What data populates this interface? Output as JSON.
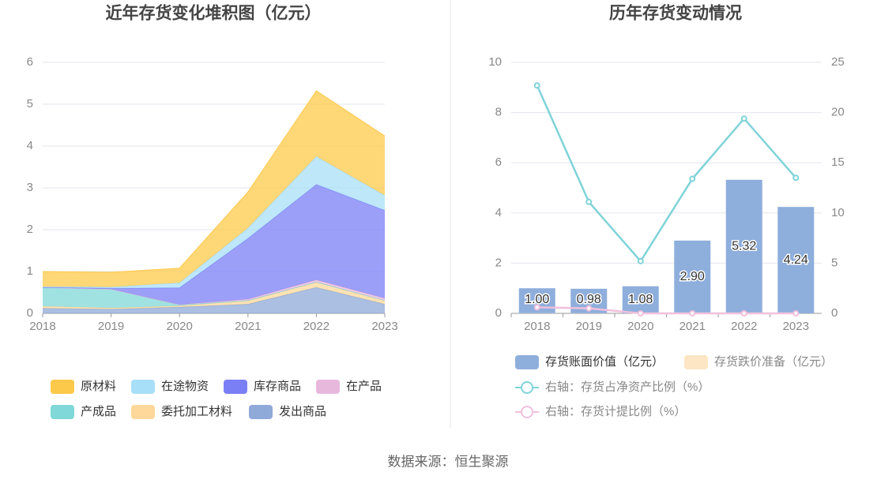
{
  "chart_data": [
    {
      "type": "area",
      "stacked": true,
      "title": "近年存货变化堆积图（亿元）",
      "categories": [
        "2018",
        "2019",
        "2020",
        "2021",
        "2022",
        "2023"
      ],
      "ylim": [
        0,
        6
      ],
      "yticks": [
        0,
        1,
        2,
        3,
        4,
        5,
        6
      ],
      "grid": true,
      "series": [
        {
          "name": "原材料",
          "color": "#fdc94a",
          "values": [
            0.36,
            0.35,
            0.35,
            0.86,
            1.57,
            1.42
          ]
        },
        {
          "name": "在途物资",
          "color": "#a8dff8",
          "values": [
            0.02,
            0.03,
            0.12,
            0.25,
            0.67,
            0.36
          ]
        },
        {
          "name": "库存商品",
          "color": "#7b7ff5",
          "values": [
            0.0,
            0.02,
            0.4,
            1.45,
            2.28,
            2.1
          ]
        },
        {
          "name": "在产品",
          "color": "#e8b8dc",
          "values": [
            0.0,
            0.0,
            0.01,
            0.03,
            0.05,
            0.05
          ]
        },
        {
          "name": "产成品",
          "color": "#80d8d8",
          "values": [
            0.45,
            0.45,
            0.02,
            0.01,
            0.01,
            0.01
          ]
        },
        {
          "name": "委托加工材料",
          "color": "#fdd89a",
          "values": [
            0.05,
            0.03,
            0.03,
            0.08,
            0.12,
            0.08
          ]
        },
        {
          "name": "发出商品",
          "color": "#8fa9d8",
          "values": [
            0.12,
            0.1,
            0.15,
            0.22,
            0.62,
            0.22
          ]
        }
      ]
    },
    {
      "type": "bar",
      "title": "历年存货变动情况",
      "categories": [
        "2018",
        "2019",
        "2020",
        "2021",
        "2022",
        "2023"
      ],
      "ylim": [
        0,
        10
      ],
      "yticks": [
        0,
        2,
        4,
        6,
        8,
        10
      ],
      "y2lim": [
        0,
        25
      ],
      "y2ticks": [
        0,
        5,
        10,
        15,
        20,
        25
      ],
      "grid": true,
      "series": [
        {
          "name": "存货账面价值（亿元）",
          "color": "#8eaedc",
          "values": [
            1.0,
            0.98,
            1.08,
            2.9,
            5.32,
            4.24
          ],
          "value_labels": [
            "1.00",
            "0.98",
            "1.08",
            "2.90",
            "5.32",
            "4.24"
          ]
        },
        {
          "name": "存货跌价准备（亿元）",
          "color": "#fde6c4",
          "values": [
            0.006,
            0.005,
            0,
            0,
            0,
            0
          ]
        },
        {
          "name": "右轴：存货占净资产比例（%）",
          "type": "line",
          "axis": "y2",
          "color": "#7fd3d8",
          "values": [
            22.7,
            11.1,
            5.2,
            13.4,
            19.4,
            13.5
          ]
        },
        {
          "name": "右轴：存货计提比例（%）",
          "type": "line",
          "axis": "y2",
          "color": "#f0c0dc",
          "values": [
            0.6,
            0.5,
            0,
            0,
            0,
            0
          ]
        }
      ]
    }
  ],
  "source": "数据来源：恒生聚源"
}
